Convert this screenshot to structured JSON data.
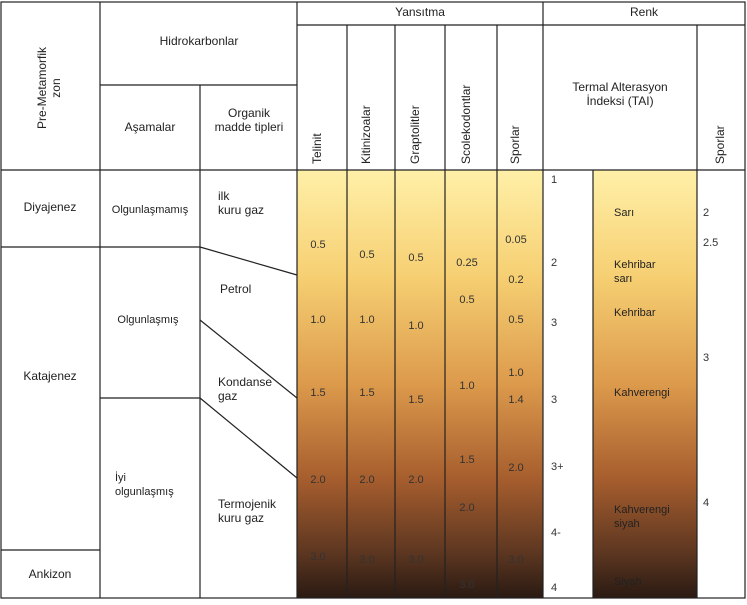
{
  "header": {
    "zone": [
      "Pre-Metamorfik",
      "zon"
    ],
    "hydrocarbons": "Hidrokarbonlar",
    "stages": "Aşamalar",
    "organic": [
      "Organik",
      "madde tipleri"
    ],
    "reflectance": "Yansıtma",
    "color": "Renk",
    "tai": [
      "Termal Alterasyon",
      "İndeksi (TAI)"
    ],
    "columns": [
      "Telinit",
      "Kitinizoalar",
      "Graptolitler",
      "Scolekodontlar",
      "Sporlar"
    ],
    "spores": "Sporlar"
  },
  "zones": [
    "Diyajenez",
    "Katajenez",
    "Ankizon"
  ],
  "stages": [
    "Olgunlaşmamış",
    "Olgunlaşmış",
    [
      "İyi",
      "olgunlaşmış"
    ]
  ],
  "organic": [
    [
      "ilk",
      "kuru gaz"
    ],
    [
      "Petrol"
    ],
    [
      "Kondanse",
      "gaz"
    ],
    [
      "Termojenik",
      "kuru gaz"
    ]
  ],
  "reflectance": [
    [
      "0.5",
      "1.0",
      "1.5",
      "2.0",
      "3.0"
    ],
    [
      "0.5",
      "1.0",
      "1.5",
      "2.0",
      "3.0"
    ],
    [
      "0.5",
      "1.0",
      "1.5",
      "2.0",
      "3.0"
    ],
    [
      "0.25",
      "0.5",
      "1.0",
      "1.5",
      "2.0",
      "3.0"
    ],
    [
      "0.05",
      "0.2",
      "0.5",
      "1.0",
      "1.4",
      "2.0",
      "3.0"
    ]
  ],
  "tai": [
    "1",
    "2",
    "3",
    "3",
    "3+",
    "4-",
    "4"
  ],
  "colors": [
    [
      "Sarı"
    ],
    [
      "Kehribar",
      "sarı"
    ],
    [
      "Kehribar"
    ],
    [
      "Kahverengi"
    ],
    [
      "Kahverengi",
      "siyah"
    ],
    [
      "Siyah"
    ]
  ],
  "spores": [
    "2",
    "2.5",
    "3",
    "4"
  ]
}
